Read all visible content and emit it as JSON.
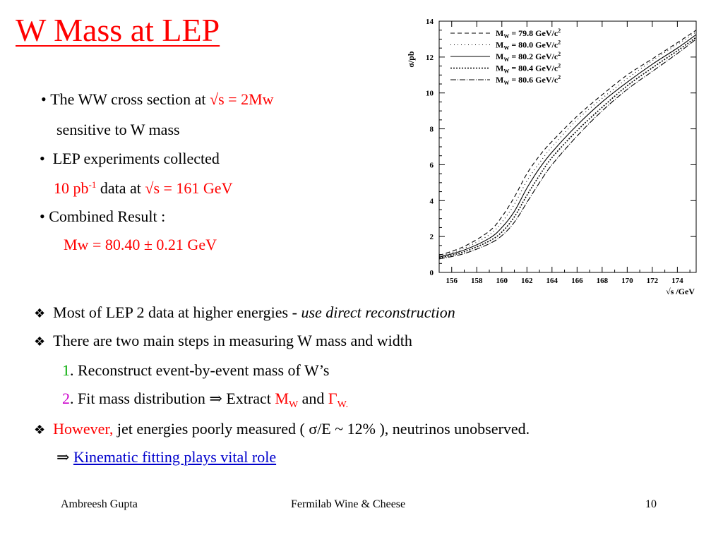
{
  "title": "W Mass at LEP",
  "bullets": {
    "b1_prefix": "The WW cross section at ",
    "b1_sqrt": "√s = 2Mw",
    "b1_cont": "sensitive to W mass",
    "b2": "LEP experiments collected",
    "b2_cont_red1": "10 pb",
    "b2_cont_sup": "-1",
    "b2_cont_mid": " data at ",
    "b2_cont_red2": "√s = 161 GeV",
    "b3": "• Combined Result :",
    "b3_result": "Mw = 80.40 ± 0.21 GeV"
  },
  "lower": {
    "l1_text": "Most of LEP 2 data at higher energies  -  ",
    "l1_italic": "use direct reconstruction",
    "l2_text": "There are two main steps in measuring W mass and width",
    "s1_num": "1",
    "s1_text": ". Reconstruct event-by-event mass of  W’s",
    "s2_num": "2",
    "s2_text": ". Fit mass distribution ⇒ Extract ",
    "s2_mw": "M",
    "s2_mw_sub": "W",
    "s2_and": " and ",
    "s2_gamma": "Γ",
    "s2_gamma_sub": "W.",
    "l3_red": "However,",
    "l3_text": " jet energies poorly measured ( σ/E ~ 12% ), neutrinos unobserved.",
    "arrow": "⇒ ",
    "l4_link": "Kinematic fitting plays vital role"
  },
  "footer": {
    "author": "Ambreesh Gupta",
    "event": "Fermilab Wine & Cheese",
    "page": "10"
  },
  "chart_data": {
    "type": "line",
    "ylabel": "σ/pb",
    "xlabel": "√s /GeV",
    "xlim": [
      155,
      175.5
    ],
    "ylim": [
      0,
      14
    ],
    "xticks": [
      156,
      158,
      160,
      162,
      164,
      166,
      168,
      170,
      172,
      174
    ],
    "yticks": [
      0,
      2,
      4,
      6,
      8,
      10,
      12,
      14
    ],
    "grid": false,
    "legend_position": "top-left",
    "series": [
      {
        "name": "M_W = 79.8 GeV/c²",
        "mass": "79.8",
        "dash": "6,4",
        "x": [
          155,
          157,
          159,
          160,
          161,
          162,
          163,
          164,
          166,
          168,
          170,
          172,
          174,
          175.5
        ],
        "y": [
          0.95,
          1.45,
          2.3,
          3.1,
          4.2,
          5.5,
          6.5,
          7.3,
          8.7,
          9.9,
          11.0,
          11.9,
          12.8,
          13.5
        ]
      },
      {
        "name": "M_W = 80.0 GeV/c²",
        "mass": "80.0",
        "dash": "1,4",
        "x": [
          155,
          157,
          159,
          160,
          161,
          162,
          163,
          164,
          166,
          168,
          170,
          172,
          174,
          175.5
        ],
        "y": [
          0.9,
          1.35,
          2.1,
          2.8,
          3.8,
          5.1,
          6.1,
          7.0,
          8.5,
          9.7,
          10.8,
          11.8,
          12.7,
          13.4
        ]
      },
      {
        "name": "M_W = 80.2 GeV/c²",
        "mass": "80.2",
        "dash": "",
        "x": [
          155,
          157,
          159,
          160,
          161,
          162,
          163,
          164,
          166,
          168,
          170,
          172,
          174,
          175.5
        ],
        "y": [
          0.85,
          1.25,
          1.9,
          2.5,
          3.4,
          4.7,
          5.8,
          6.7,
          8.2,
          9.5,
          10.6,
          11.6,
          12.5,
          13.25
        ]
      },
      {
        "name": "M_W = 80.4 GeV/c²",
        "mass": "80.4",
        "dash": "2,2",
        "x": [
          155,
          157,
          159,
          160,
          161,
          162,
          163,
          164,
          166,
          168,
          170,
          172,
          174,
          175.5
        ],
        "y": [
          0.8,
          1.15,
          1.75,
          2.25,
          3.1,
          4.3,
          5.4,
          6.4,
          7.9,
          9.2,
          10.4,
          11.4,
          12.35,
          13.1
        ]
      },
      {
        "name": "M_W = 80.6 GeV/c²",
        "mass": "80.6",
        "dash": "8,2,1,2",
        "x": [
          155,
          157,
          159,
          160,
          161,
          162,
          163,
          164,
          166,
          168,
          170,
          172,
          174,
          175.5
        ],
        "y": [
          0.75,
          1.05,
          1.6,
          2.05,
          2.8,
          3.9,
          5.0,
          6.0,
          7.6,
          9.0,
          10.2,
          11.2,
          12.2,
          13.0
        ]
      }
    ]
  }
}
